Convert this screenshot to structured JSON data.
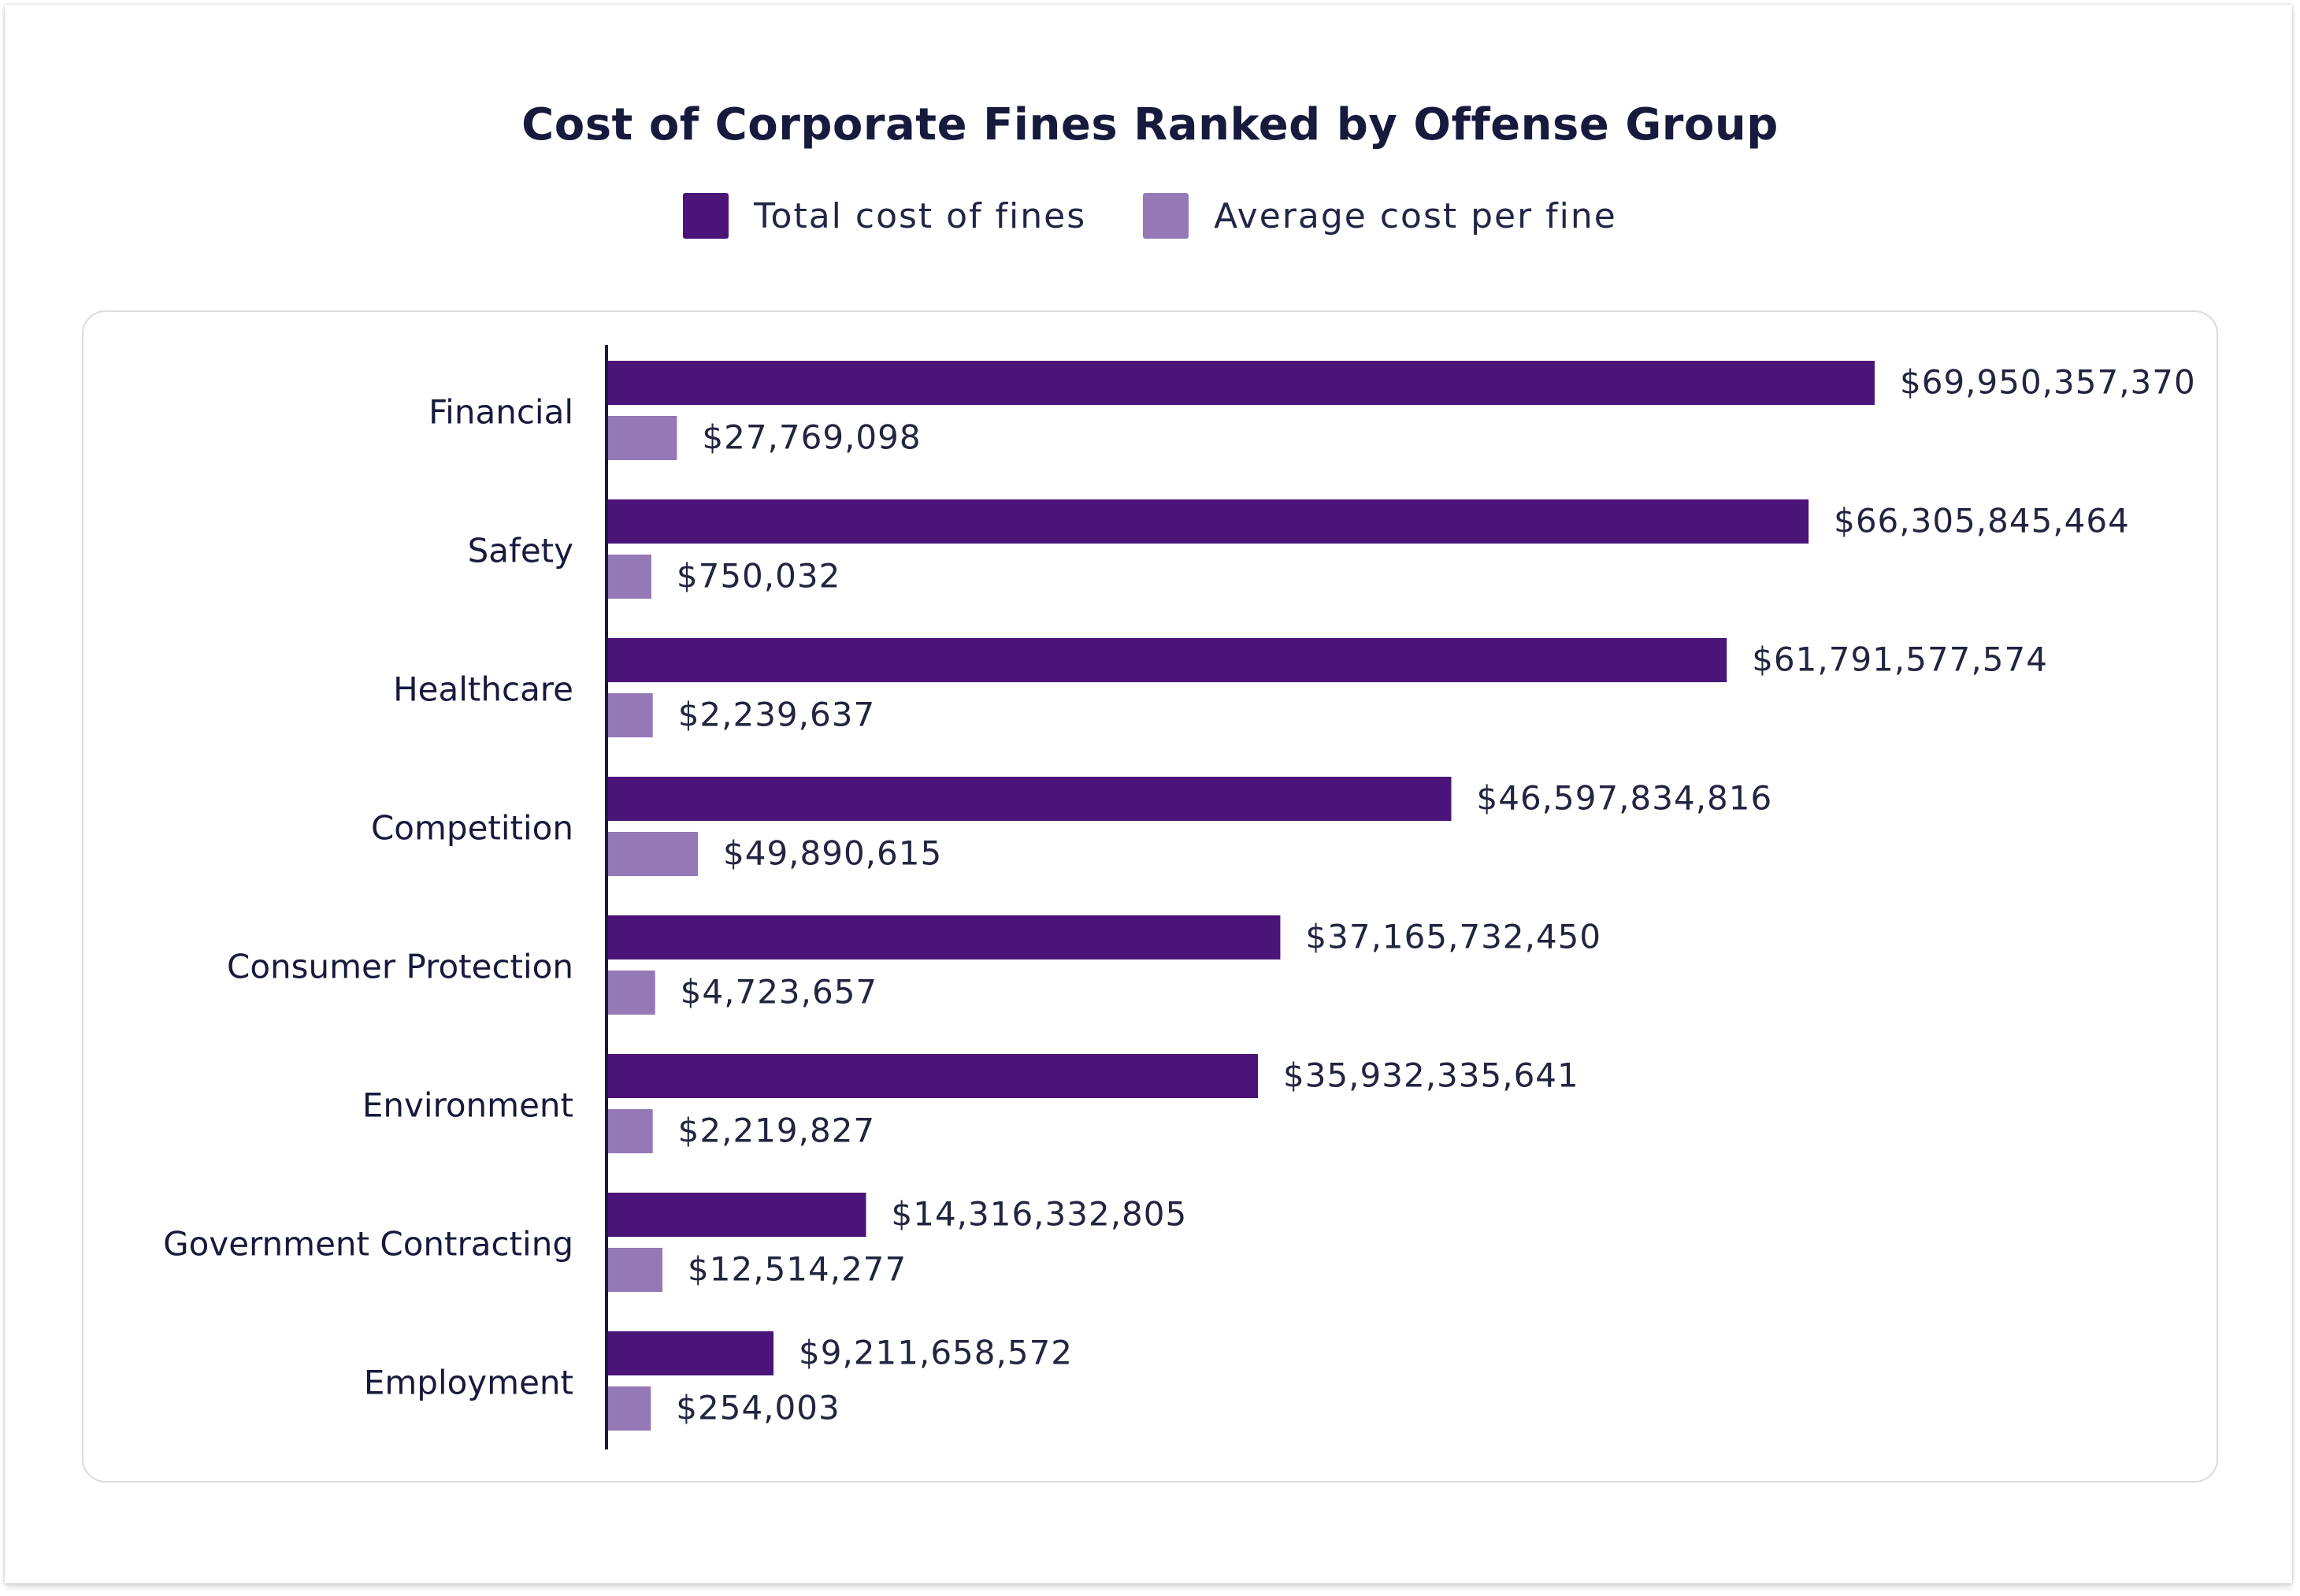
{
  "chart_data": {
    "type": "bar",
    "orientation": "horizontal",
    "title": "Cost of Corporate Fines Ranked by Offense Group",
    "categories": [
      "Financial",
      "Safety",
      "Healthcare",
      "Competition",
      "Consumer Protection",
      "Environment",
      "Government Contracting",
      "Employment"
    ],
    "series": [
      {
        "name": "Total cost of fines",
        "color": "#4a1478",
        "values": [
          69950357370,
          66305845464,
          61791577574,
          46597834816,
          37165732450,
          35932335641,
          14316332805,
          9211658572
        ],
        "labels": [
          "$69,950,357,370",
          "$66,305,845,464",
          "$61,791,577,574",
          "$46,597,834,816",
          "$37,165,732,450",
          "$35,932,335,641",
          "$14,316,332,805",
          "$9,211,658,572"
        ]
      },
      {
        "name": "Average cost per fine",
        "color": "#9578b6",
        "values": [
          27769098,
          750032,
          2239637,
          49890615,
          4723657,
          2219827,
          12514277,
          254003
        ],
        "labels": [
          "$27,769,098",
          "$750,032",
          "$2,239,637",
          "$49,890,615",
          "$4,723,657",
          "$2,219,827",
          "$12,514,277",
          "$254,003"
        ]
      }
    ],
    "legend_position": "top-center",
    "grid": false
  }
}
